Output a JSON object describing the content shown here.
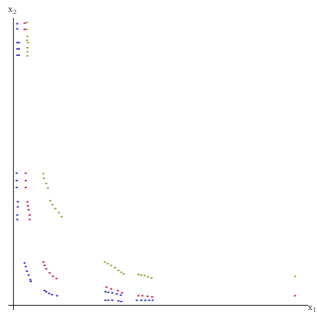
{
  "chart_data": {
    "type": "scatter",
    "xlabel": "x",
    "xlabel_sub": "1",
    "ylabel": "x",
    "ylabel_sub": "2",
    "xlim": [
      0,
      100
    ],
    "ylim": [
      0,
      100
    ],
    "grid": false,
    "legend": "none",
    "series": [
      {
        "color": "#2b2bd0",
        "points": [
          [
            1.2,
            98.0
          ],
          [
            1.2,
            96.2
          ],
          [
            1.2,
            91.4
          ],
          [
            1.2,
            89.2
          ],
          [
            1.2,
            87.0
          ],
          [
            1.8,
            91.4
          ],
          [
            1.8,
            89.2
          ],
          [
            1.8,
            87.0
          ],
          [
            1.0,
            45.8
          ],
          [
            1.0,
            43.2
          ],
          [
            1.0,
            40.8
          ],
          [
            1.4,
            35.8
          ],
          [
            1.4,
            34.0
          ],
          [
            1.2,
            31.2
          ],
          [
            1.2,
            29.6
          ],
          [
            3.8,
            14.4
          ],
          [
            4.2,
            13.2
          ],
          [
            4.6,
            11.6
          ],
          [
            5.2,
            10.2
          ],
          [
            5.8,
            8.6
          ],
          [
            6.0,
            8.0
          ],
          [
            10.8,
            4.8
          ],
          [
            11.4,
            4.4
          ],
          [
            12.4,
            3.8
          ],
          [
            13.4,
            3.4
          ],
          [
            15.2,
            3.0
          ],
          [
            32.2,
            4.4
          ],
          [
            33.2,
            4.2
          ],
          [
            34.6,
            4.0
          ],
          [
            36.2,
            3.6
          ],
          [
            37.6,
            3.2
          ],
          [
            32.2,
            1.4
          ],
          [
            33.2,
            1.4
          ],
          [
            34.6,
            1.4
          ],
          [
            36.8,
            1.2
          ],
          [
            37.8,
            1.0
          ],
          [
            43.2,
            1.4
          ],
          [
            44.8,
            1.4
          ],
          [
            46.2,
            1.4
          ],
          [
            47.6,
            1.4
          ],
          [
            48.8,
            1.4
          ]
        ]
      },
      {
        "color": "#c2185b",
        "points": [
          [
            3.8,
            98.2
          ],
          [
            3.8,
            96.0
          ],
          [
            4.2,
            45.8
          ],
          [
            4.2,
            43.2
          ],
          [
            4.2,
            40.8
          ],
          [
            4.8,
            35.8
          ],
          [
            5.0,
            34.4
          ],
          [
            5.2,
            33.0
          ],
          [
            5.6,
            31.2
          ],
          [
            5.6,
            29.6
          ],
          [
            10.4,
            14.8
          ],
          [
            10.8,
            13.6
          ],
          [
            11.4,
            12.4
          ],
          [
            12.6,
            11.0
          ],
          [
            13.8,
            9.8
          ],
          [
            15.0,
            9.0
          ],
          [
            32.6,
            6.0
          ],
          [
            34.2,
            5.4
          ],
          [
            36.6,
            4.8
          ],
          [
            38.0,
            4.0
          ],
          [
            43.8,
            3.0
          ],
          [
            45.2,
            3.0
          ],
          [
            47.0,
            2.8
          ],
          [
            48.6,
            2.6
          ],
          [
            98.8,
            3.0
          ]
        ]
      },
      {
        "color": "#a39a2a",
        "points": [
          [
            4.6,
            98.4
          ],
          [
            4.6,
            96.0
          ],
          [
            4.8,
            93.6
          ],
          [
            4.6,
            92.2
          ],
          [
            5.0,
            91.4
          ],
          [
            4.8,
            89.6
          ],
          [
            4.8,
            88.2
          ],
          [
            4.8,
            86.8
          ],
          [
            10.4,
            45.6
          ],
          [
            10.6,
            44.0
          ],
          [
            11.4,
            42.2
          ],
          [
            12.0,
            40.6
          ],
          [
            12.8,
            36.2
          ],
          [
            13.6,
            34.8
          ],
          [
            14.6,
            33.4
          ],
          [
            15.8,
            32.0
          ],
          [
            16.8,
            30.6
          ],
          [
            32.0,
            14.8
          ],
          [
            33.0,
            14.2
          ],
          [
            34.2,
            13.6
          ],
          [
            35.6,
            12.8
          ],
          [
            36.8,
            11.8
          ],
          [
            37.8,
            11.2
          ],
          [
            38.6,
            10.6
          ],
          [
            43.8,
            10.4
          ],
          [
            44.8,
            10.2
          ],
          [
            46.0,
            10.0
          ],
          [
            47.2,
            9.6
          ],
          [
            48.4,
            9.2
          ],
          [
            98.8,
            9.8
          ]
        ]
      }
    ]
  }
}
